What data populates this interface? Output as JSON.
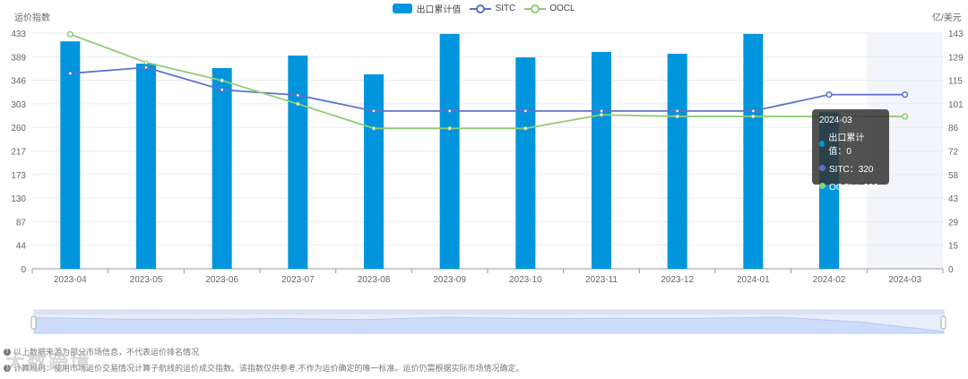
{
  "legend": {
    "items": [
      {
        "label": "出口累计值",
        "color": "#0095dc",
        "type": "bar"
      },
      {
        "label": "SITC",
        "color": "#5b73c9",
        "type": "line"
      },
      {
        "label": "OOCL",
        "color": "#91cc75",
        "type": "line"
      }
    ]
  },
  "axes": {
    "left_title": "运价指数",
    "right_title": "亿/美元",
    "left_ticks": [
      "0",
      "44",
      "87",
      "130",
      "173",
      "217",
      "260",
      "303",
      "346",
      "389",
      "433"
    ],
    "right_ticks": [
      "0",
      "15",
      "29",
      "43",
      "58",
      "72",
      "86",
      "101",
      "115",
      "129",
      "143"
    ]
  },
  "tooltip": {
    "title": "2024-03",
    "rows": [
      {
        "label": "出口累计值：0",
        "color": "#0095dc"
      },
      {
        "label": "SITC：320",
        "color": "#5b73c9"
      },
      {
        "label": "OOCL：280",
        "color": "#91cc75"
      }
    ]
  },
  "footnotes": [
    "以上数据来源为部分市场信息，不代表运价排名情况",
    "计算规则：使用市场运价交易情况计算子航线的运价成交指数。该指数仅供参考,不作为运价确定的唯一标准。运价仍需根据实际市场情况确定。"
  ],
  "watermark": "大数跨境",
  "chart_data": {
    "type": "bar",
    "title": "",
    "categories": [
      "2023-04",
      "2023-05",
      "2023-06",
      "2023-07",
      "2023-08",
      "2023-09",
      "2023-10",
      "2023-11",
      "2023-12",
      "2024-01",
      "2024-02",
      "2024-03"
    ],
    "series": [
      {
        "name": "出口累计值",
        "type": "bar",
        "axis": "right",
        "color": "#0095dc",
        "values": [
          138,
          124.5,
          121.8,
          129.4,
          118,
          142.5,
          128.3,
          131.6,
          130.5,
          142.5,
          95,
          0
        ]
      },
      {
        "name": "SITC",
        "type": "line",
        "axis": "left",
        "color": "#5b73c9",
        "values": [
          359,
          370,
          329,
          319,
          290,
          290,
          290,
          290,
          290,
          290,
          320,
          320
        ]
      },
      {
        "name": "OOCL",
        "type": "line",
        "axis": "left",
        "color": "#91cc75",
        "values": [
          431,
          379,
          346,
          303,
          258,
          258,
          258,
          283,
          280,
          280,
          280,
          280
        ]
      }
    ],
    "ylabel": "运价指数",
    "y2label": "亿/美元",
    "ylim": [
      0,
      433
    ],
    "y2lim": [
      0,
      143
    ],
    "grid": true,
    "legend_position": "top",
    "highlighted_category": "2024-03"
  }
}
